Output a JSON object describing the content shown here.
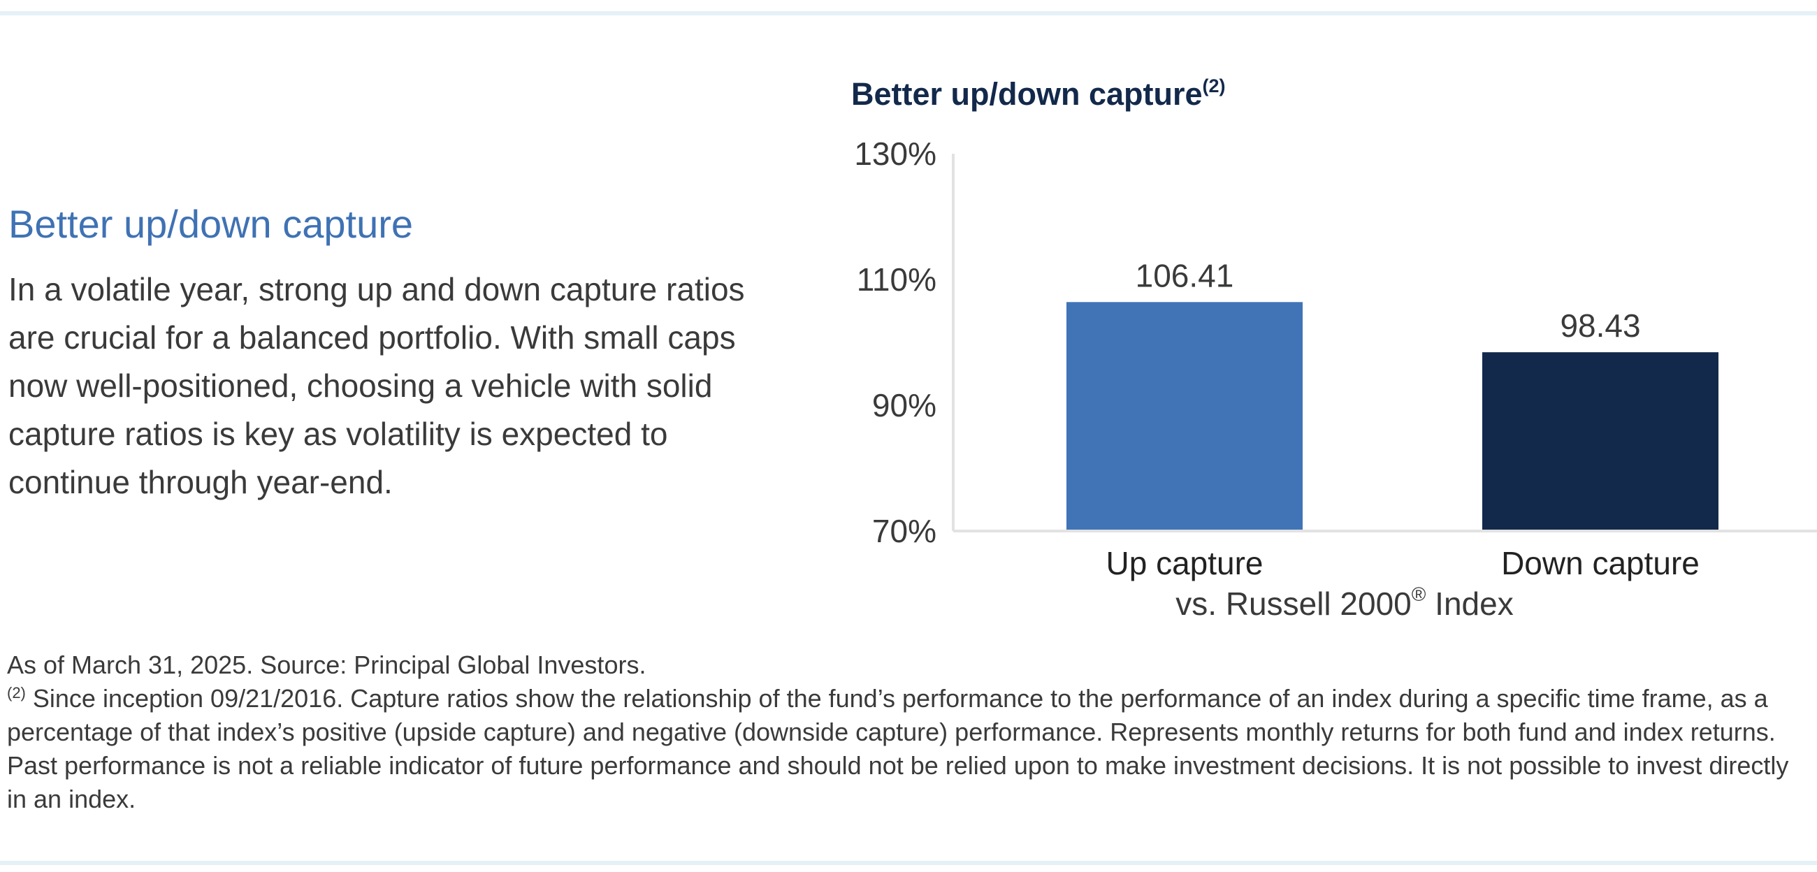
{
  "left": {
    "heading": "Better up/down capture",
    "body": "In a volatile year, strong up and down capture ratios are crucial for a balanced portfolio. With small caps now well-positioned, choosing a vehicle with solid capture ratios is key as volatility is expected to continue through year-end."
  },
  "chart_data": {
    "type": "bar",
    "title": "Better up/down capture",
    "title_sup": "(2)",
    "categories": [
      "Up capture",
      "Down capture"
    ],
    "values": [
      106.41,
      98.43
    ],
    "value_labels": [
      "106.41",
      "98.43"
    ],
    "bar_colors": [
      "#4174b7",
      "#13294b"
    ],
    "ylim": [
      70,
      130
    ],
    "yticks": [
      70,
      90,
      110,
      130
    ],
    "ytick_labels": [
      "70%",
      "90%",
      "110%",
      "130%"
    ],
    "xlabel": "vs. Russell 2000",
    "xlabel_sup": "®",
    "xlabel_suffix": " Index",
    "grid": false
  },
  "footnotes": {
    "source": "As of March 31, 2025. Source: Principal Global Investors.",
    "note_marker": "(2)",
    "note_text": " Since inception 09/21/2016. Capture ratios show the relationship of the fund’s performance to the performance of an index during a specific time frame, as a percentage of that index’s positive (upside capture) and negative (downside capture) performance. Represents monthly returns for both fund and index returns. Past performance is not a reliable indicator of future performance and should not be relied upon to make investment decisions. It is not possible to invest directly in an index."
  }
}
